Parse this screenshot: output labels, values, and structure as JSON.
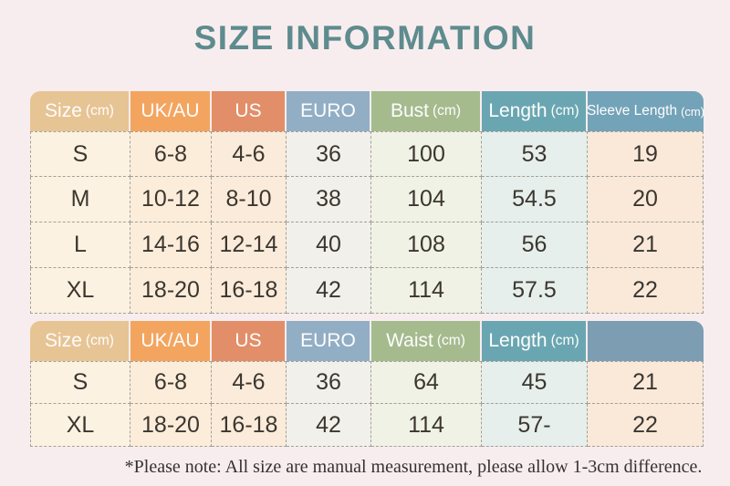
{
  "page": {
    "title": "SIZE INFORMATION",
    "footnote": "*Please note: All size are manual measurement, please allow 1-3cm difference."
  },
  "colors": {
    "background": "#f8edee",
    "title": "#5e8b8e",
    "header_text": "#fdfdfc",
    "cell_text": "#3b3630",
    "dashed_border": "#a3a099"
  },
  "chart_data": [
    {
      "type": "table",
      "title": "tops size table",
      "columns": [
        {
          "label": "Size",
          "unit": "(cm)"
        },
        {
          "label": "UK/AU",
          "unit": ""
        },
        {
          "label": "US",
          "unit": ""
        },
        {
          "label": "EURO",
          "unit": ""
        },
        {
          "label": "Bust",
          "unit": "(cm)"
        },
        {
          "label": "Length",
          "unit": "(cm)"
        },
        {
          "label": "Sleeve Length",
          "unit": "(cm)"
        }
      ],
      "rows": [
        [
          "S",
          "6-8",
          "4-6",
          "36",
          "100",
          "53",
          "19"
        ],
        [
          "M",
          "10-12",
          "8-10",
          "38",
          "104",
          "54.5",
          "20"
        ],
        [
          "L",
          "14-16",
          "12-14",
          "40",
          "108",
          "56",
          "21"
        ],
        [
          "XL",
          "18-20",
          "16-18",
          "42",
          "114",
          "57.5",
          "22"
        ]
      ],
      "header_colors": [
        "#e7c494",
        "#f3a55f",
        "#e28e68",
        "#92aec5",
        "#a5bb8e",
        "#6aa6b1",
        "#73a3b8"
      ],
      "cell_colors": [
        "#fcf2e2",
        "#fcedda",
        "#fbebda",
        "#f2f0ea",
        "#f1f2e6",
        "#e6efeb",
        "#fae9d9"
      ]
    },
    {
      "type": "table",
      "title": "bottoms size table",
      "columns": [
        {
          "label": "Size",
          "unit": "(cm)"
        },
        {
          "label": "UK/AU",
          "unit": ""
        },
        {
          "label": "US",
          "unit": ""
        },
        {
          "label": "EURO",
          "unit": ""
        },
        {
          "label": "Waist",
          "unit": "(cm)"
        },
        {
          "label": "Length",
          "unit": "(cm)"
        },
        {
          "label": "",
          "unit": ""
        }
      ],
      "rows": [
        [
          "S",
          "6-8",
          "4-6",
          "36",
          "64",
          "45",
          "21"
        ],
        [
          "XL",
          "18-20",
          "16-18",
          "42",
          "114",
          "57-",
          "22"
        ]
      ],
      "header_colors": [
        "#e7c494",
        "#f3a55f",
        "#e28e68",
        "#92aec5",
        "#a5bb8e",
        "#6aa6b1",
        "#7d9db3"
      ],
      "cell_colors": [
        "#fcf2e2",
        "#fcedda",
        "#fbebda",
        "#f2f0ea",
        "#f1f2e6",
        "#e6efeb",
        "#fae9d9"
      ]
    }
  ]
}
